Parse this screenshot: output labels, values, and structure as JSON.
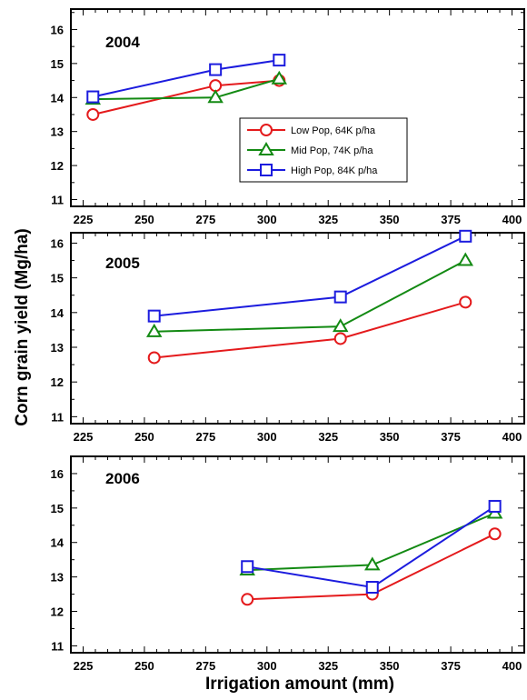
{
  "chart_data": [
    {
      "type": "line",
      "title": "2004",
      "xlim": [
        220,
        405
      ],
      "ylim": [
        10.8,
        16.6
      ],
      "xticks": [
        225,
        250,
        275,
        300,
        325,
        350,
        375,
        400
      ],
      "yticks": [
        11,
        12,
        13,
        14,
        15,
        16
      ],
      "legend": "center-right",
      "series": [
        {
          "name": "Low Pop, 64K p/ha",
          "color": "#e41a1c",
          "marker": "circle",
          "x": [
            229,
            279,
            305
          ],
          "y": [
            13.5,
            14.35,
            14.5
          ]
        },
        {
          "name": "Mid Pop, 74K p/ha",
          "color": "#138a13",
          "marker": "triangle",
          "x": [
            229,
            279,
            305
          ],
          "y": [
            13.95,
            14.0,
            14.55
          ]
        },
        {
          "name": "High Pop, 84K p/ha",
          "color": "#1c1cde",
          "marker": "square",
          "x": [
            229,
            279,
            305
          ],
          "y": [
            14.02,
            14.82,
            15.1
          ]
        }
      ]
    },
    {
      "type": "line",
      "title": "2005",
      "xlim": [
        220,
        405
      ],
      "ylim": [
        10.8,
        16.3
      ],
      "xticks": [
        225,
        250,
        275,
        300,
        325,
        350,
        375,
        400
      ],
      "yticks": [
        11,
        12,
        13,
        14,
        15,
        16
      ],
      "series": [
        {
          "name": "Low Pop, 64K p/ha",
          "color": "#e41a1c",
          "marker": "circle",
          "x": [
            254,
            330,
            381
          ],
          "y": [
            12.7,
            13.25,
            14.3
          ]
        },
        {
          "name": "Mid Pop, 74K p/ha",
          "color": "#138a13",
          "marker": "triangle",
          "x": [
            254,
            330,
            381
          ],
          "y": [
            13.45,
            13.6,
            15.5
          ]
        },
        {
          "name": "High Pop, 84K p/ha",
          "color": "#1c1cde",
          "marker": "square",
          "x": [
            254,
            330,
            381
          ],
          "y": [
            13.9,
            14.45,
            16.2
          ]
        }
      ]
    },
    {
      "type": "line",
      "title": "2006",
      "xlim": [
        220,
        405
      ],
      "ylim": [
        10.8,
        16.5
      ],
      "xticks": [
        225,
        250,
        275,
        300,
        325,
        350,
        375,
        400
      ],
      "yticks": [
        11,
        12,
        13,
        14,
        15,
        16
      ],
      "series": [
        {
          "name": "Low Pop, 64K p/ha",
          "color": "#e41a1c",
          "marker": "circle",
          "x": [
            292,
            343,
            393
          ],
          "y": [
            12.35,
            12.5,
            14.25
          ]
        },
        {
          "name": "Mid Pop, 74K p/ha",
          "color": "#138a13",
          "marker": "triangle",
          "x": [
            292,
            343,
            393
          ],
          "y": [
            13.2,
            13.35,
            14.85
          ]
        },
        {
          "name": "High Pop, 84K p/ha",
          "color": "#1c1cde",
          "marker": "square",
          "x": [
            292,
            343,
            393
          ],
          "y": [
            13.3,
            12.7,
            15.05
          ]
        }
      ]
    }
  ],
  "xlabel": "Irrigation amount (mm)",
  "ylabel": "Corn grain yield (Mg/ha)"
}
